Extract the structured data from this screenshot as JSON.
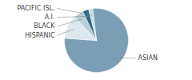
{
  "chart_data": {
    "type": "pie",
    "categories": [
      "ASIAN",
      "HISPANIC",
      "BLACK",
      "A.I.",
      "PACIFIC ISL."
    ],
    "values": [
      78,
      12,
      5,
      3,
      2
    ],
    "colors": [
      "#7a9fb5",
      "#dce8ef",
      "#b8cfd8",
      "#2e6a8a",
      "#c8dde6"
    ]
  }
}
